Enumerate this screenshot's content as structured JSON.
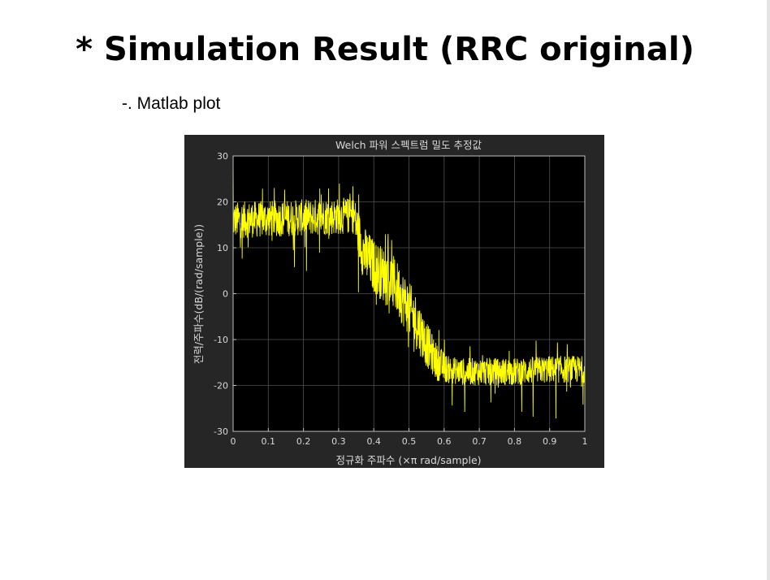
{
  "slide": {
    "title": "* Simulation Result (RRC original)",
    "subtitle": "-. Matlab plot"
  },
  "colors": {
    "figure_background": "#262626",
    "axes_background": "#000000",
    "grid": "#505050",
    "text": "#d9d9d9",
    "trace": "#ffff00"
  },
  "chart_data": {
    "type": "line",
    "title": "Welch 파워 스펙트럼 밀도 추정값",
    "xlabel": "정규화 주파수  (×π rad/sample)",
    "ylabel": "전력/주파수(dB/(rad/sample))",
    "xlim": [
      0,
      1
    ],
    "ylim": [
      -30,
      30
    ],
    "xticks": [
      0,
      0.1,
      0.2,
      0.3,
      0.4,
      0.5,
      0.6,
      0.7,
      0.8,
      0.9,
      1
    ],
    "xtick_labels": [
      "0",
      "0.1",
      "0.2",
      "0.3",
      "0.4",
      "0.5",
      "0.6",
      "0.7",
      "0.8",
      "0.9",
      "1"
    ],
    "yticks": [
      -30,
      -20,
      -10,
      0,
      10,
      20,
      30
    ],
    "ytick_labels": [
      "-30",
      "-20",
      "-10",
      "0",
      "10",
      "20",
      "30"
    ],
    "grid": true,
    "series": [
      {
        "color": "#ffff00",
        "envelope": {
          "x": [
            0,
            0.345,
            0.35,
            0.37,
            0.4,
            0.43,
            0.46,
            0.49,
            0.52,
            0.55,
            0.58,
            0.61,
            0.65,
            0.7,
            0.8,
            0.9,
            1.0
          ],
          "mean_db": [
            16,
            17,
            15,
            9,
            6,
            4,
            2,
            -2,
            -6,
            -11,
            -15,
            -16.5,
            -17,
            -17,
            -17,
            -16.5,
            -16.5
          ],
          "spread_db": [
            4,
            4,
            5,
            6,
            6,
            6,
            6,
            6,
            6,
            5,
            4,
            3,
            3,
            3,
            3,
            3,
            3
          ]
        }
      }
    ]
  }
}
